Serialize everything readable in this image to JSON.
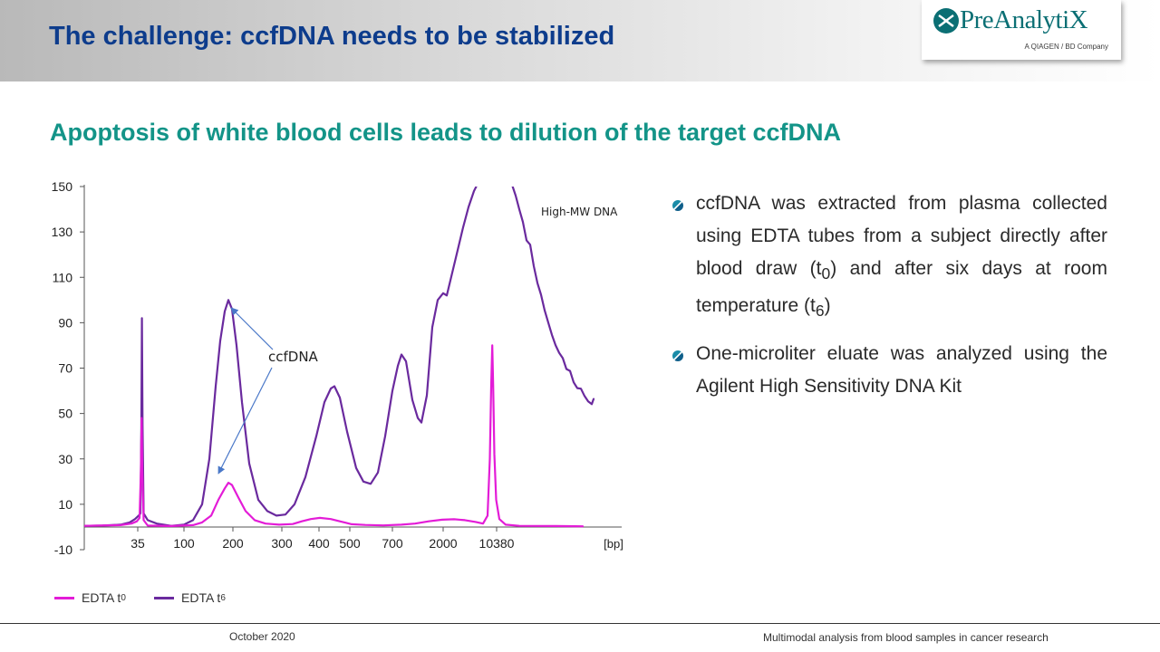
{
  "slide": {
    "title": "The challenge: ccfDNA needs to be stabilized",
    "subtitle": "Apoptosis of white blood cells leads to dilution of the target ccfDNA"
  },
  "logo": {
    "name": "PreAnalytiX",
    "tagline": "A QIAGEN / BD Company",
    "color": "#0b6f74"
  },
  "bullets": [
    {
      "text_before": "ccfDNA was extracted from plasma collected using EDTA tubes from a subject directly after blood draw (t",
      "sub1": "0",
      "text_mid": ") and after six days at room temperature (t",
      "sub2": "6",
      "text_after": ")"
    },
    {
      "text": "One-microliter eluate was analyzed using the Agilent High Sensitivity DNA Kit"
    }
  ],
  "legend": {
    "t0_label": "EDTA t",
    "t0_sub": "0",
    "t6_label": "EDTA t",
    "t6_sub": "6"
  },
  "footer": {
    "date": "October 2020",
    "right": "Multimodal analysis from blood samples in cancer research"
  },
  "colors": {
    "title": "#0d3c8c",
    "subtitle": "#139488",
    "t0": "#e31cd7",
    "t6": "#6a2a9e",
    "annotation_arrow": "#4a78c8"
  },
  "chart_data": {
    "type": "line",
    "title": "",
    "xlabel": "[bp]",
    "ylabel": "",
    "ylim": [
      -10,
      150
    ],
    "yticks": [
      150,
      130,
      110,
      90,
      70,
      50,
      30,
      10,
      -10
    ],
    "xticks": [
      "35",
      "100",
      "200",
      "300",
      "400",
      "500",
      "700",
      "2000",
      "10380"
    ],
    "x_unit_label": "[bp]",
    "annotations": {
      "ccfdna": "ccfDNA",
      "high_mw": "High-MW DNA"
    },
    "series": [
      {
        "name": "EDTA t0",
        "color": "#e31cd7",
        "points": [
          [
            0,
            0.5
          ],
          [
            16,
            0.6
          ],
          [
            40,
            0.8
          ],
          [
            52,
            1.5
          ],
          [
            58,
            2.5
          ],
          [
            61,
            4
          ],
          [
            62.5,
            25
          ],
          [
            63.3,
            48
          ],
          [
            64,
            25
          ],
          [
            65.5,
            3
          ],
          [
            70,
            0.6
          ],
          [
            96,
            0.4
          ],
          [
            120,
            0.8
          ],
          [
            130,
            2
          ],
          [
            140,
            5
          ],
          [
            148,
            12
          ],
          [
            155,
            17
          ],
          [
            159,
            19.5
          ],
          [
            163,
            18.5
          ],
          [
            170,
            13
          ],
          [
            178,
            7
          ],
          [
            188,
            3
          ],
          [
            200,
            1.5
          ],
          [
            215,
            1
          ],
          [
            230,
            1.3
          ],
          [
            240,
            2.5
          ],
          [
            250,
            3.5
          ],
          [
            260,
            4
          ],
          [
            272,
            3.5
          ],
          [
            282,
            2.5
          ],
          [
            295,
            1.2
          ],
          [
            310,
            0.9
          ],
          [
            330,
            0.7
          ],
          [
            350,
            1
          ],
          [
            365,
            1.5
          ],
          [
            380,
            2.5
          ],
          [
            395,
            3.2
          ],
          [
            408,
            3.4
          ],
          [
            420,
            3
          ],
          [
            432,
            2.2
          ],
          [
            440,
            1.5
          ],
          [
            445,
            5
          ],
          [
            447.5,
            30
          ],
          [
            449,
            62
          ],
          [
            450.2,
            80
          ],
          [
            451.2,
            62
          ],
          [
            452.5,
            32
          ],
          [
            454.5,
            12
          ],
          [
            458,
            3.5
          ],
          [
            465,
            1
          ],
          [
            480,
            0.5
          ],
          [
            520,
            0.4
          ],
          [
            550,
            0.3
          ]
        ]
      },
      {
        "name": "EDTA t6",
        "color": "#6a2a9e",
        "points": [
          [
            0,
            0.5
          ],
          [
            20,
            0.6
          ],
          [
            40,
            1
          ],
          [
            50,
            2
          ],
          [
            56,
            3.5
          ],
          [
            60,
            5
          ],
          [
            62,
            6
          ],
          [
            63,
            45
          ],
          [
            63.6,
            92
          ],
          [
            64.3,
            45
          ],
          [
            65.5,
            6
          ],
          [
            70,
            3
          ],
          [
            80,
            1.5
          ],
          [
            96,
            0.5
          ],
          [
            110,
            1
          ],
          [
            120,
            3
          ],
          [
            130,
            10
          ],
          [
            138,
            30
          ],
          [
            145,
            62
          ],
          [
            150,
            82
          ],
          [
            155,
            95
          ],
          [
            159,
            100
          ],
          [
            163,
            96
          ],
          [
            168,
            80
          ],
          [
            174,
            55
          ],
          [
            182,
            28
          ],
          [
            192,
            12
          ],
          [
            202,
            7
          ],
          [
            212,
            5
          ],
          [
            222,
            5.5
          ],
          [
            232,
            10
          ],
          [
            244,
            22
          ],
          [
            256,
            40
          ],
          [
            265,
            55
          ],
          [
            272,
            61
          ],
          [
            276,
            62
          ],
          [
            282,
            57
          ],
          [
            290,
            42
          ],
          [
            300,
            26
          ],
          [
            308,
            20
          ],
          [
            316,
            19
          ],
          [
            324,
            24
          ],
          [
            332,
            40
          ],
          [
            340,
            60
          ],
          [
            346,
            71
          ],
          [
            350,
            76
          ],
          [
            355,
            73
          ],
          [
            362,
            56
          ],
          [
            368,
            48
          ],
          [
            372,
            46
          ],
          [
            378,
            58
          ],
          [
            384,
            88
          ],
          [
            390,
            100
          ],
          [
            396,
            103
          ],
          [
            400,
            102
          ],
          [
            406,
            112
          ],
          [
            412,
            122
          ],
          [
            418,
            132
          ],
          [
            424,
            141
          ],
          [
            430,
            148
          ],
          [
            435,
            152
          ],
          [
            471,
            152
          ],
          [
            476,
            146
          ],
          [
            480,
            140
          ],
          [
            484,
            136
          ],
          [
            488,
            128
          ],
          [
            492,
            124
          ],
          [
            496,
            116
          ],
          [
            500,
            108
          ],
          [
            504,
            103
          ],
          [
            508,
            96
          ],
          [
            512,
            90
          ],
          [
            516,
            86
          ],
          [
            520,
            82
          ],
          [
            524,
            78
          ],
          [
            528,
            74
          ],
          [
            532,
            71
          ],
          [
            536,
            68
          ],
          [
            540,
            65
          ],
          [
            544,
            63
          ],
          [
            548,
            60
          ],
          [
            552,
            58
          ],
          [
            556,
            57
          ],
          [
            560,
            55
          ],
          [
            562,
            58
          ]
        ]
      }
    ]
  }
}
